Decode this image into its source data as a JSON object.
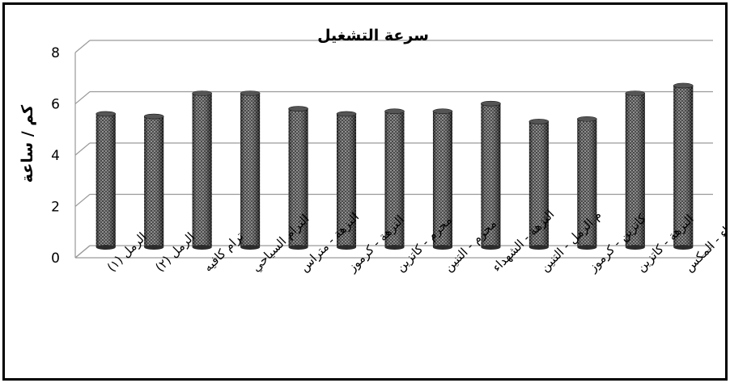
{
  "chart_data": {
    "type": "bar",
    "title": "سرعة التشغيل",
    "ylabel": "كم / ساعة",
    "xlabel": "",
    "ylim": [
      0,
      8
    ],
    "yticks": [
      0,
      2,
      4,
      6,
      8
    ],
    "grid": true,
    "categories": [
      "الرمل (١)",
      "الرمل (٢)",
      "ترام كافيه",
      "الترام السياحي",
      "النزهة - متراس",
      "النزهة - كرموز",
      "محرم - كاتزين",
      "محرم - التنين",
      "النزهة - الشهداء",
      "م الرمل - التنين",
      "كاتزين - كرموز",
      "النزهة - كاتزين",
      "الشهداء - المكس"
    ],
    "values": [
      5.2,
      5.1,
      6.0,
      6.0,
      5.4,
      5.2,
      5.3,
      5.3,
      5.6,
      4.9,
      5.0,
      6.0,
      6.3
    ],
    "colors": {
      "bar": "#2b2b2b",
      "bar_dot": "#bdbdbd",
      "grid": "#9a9a9a"
    }
  }
}
